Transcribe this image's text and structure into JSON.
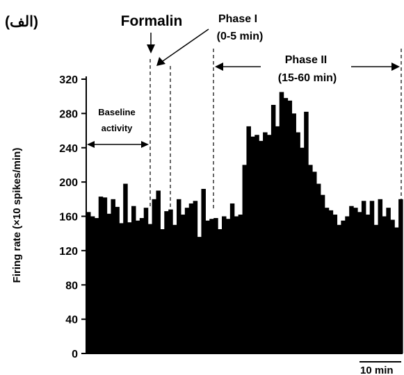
{
  "chart_data": {
    "type": "bar",
    "panel_label": "(الف)",
    "ylabel": "Firing rate (×10 spikes/min)",
    "xlabel": "",
    "ylim": [
      0,
      320
    ],
    "yticks": [
      0,
      40,
      80,
      120,
      160,
      200,
      240,
      280,
      320
    ],
    "bar_color": "#000000",
    "scale_bar": {
      "label": "10 min",
      "minutes": 10
    },
    "annotations": {
      "formalin": "Formalin",
      "phase1_title": "Phase I",
      "phase1_range": "(0-5 min)",
      "phase2_title": "Phase II",
      "phase2_range": "(15-60 min)",
      "baseline_line1": "Baseline",
      "baseline_line2": "activity"
    },
    "values": [
      165,
      160,
      158,
      183,
      182,
      163,
      180,
      171,
      152,
      198,
      153,
      172,
      155,
      158,
      170,
      151,
      180,
      190,
      145,
      166,
      168,
      150,
      180,
      162,
      170,
      175,
      178,
      136,
      192,
      155,
      157,
      158,
      145,
      160,
      157,
      175,
      160,
      162,
      220,
      265,
      253,
      255,
      248,
      258,
      255,
      290,
      265,
      305,
      298,
      295,
      280,
      258,
      240,
      282,
      220,
      212,
      198,
      185,
      170,
      167,
      162,
      150,
      155,
      160,
      172,
      170,
      165,
      178,
      162,
      178,
      150,
      180,
      160,
      170,
      156,
      147,
      180
    ]
  }
}
